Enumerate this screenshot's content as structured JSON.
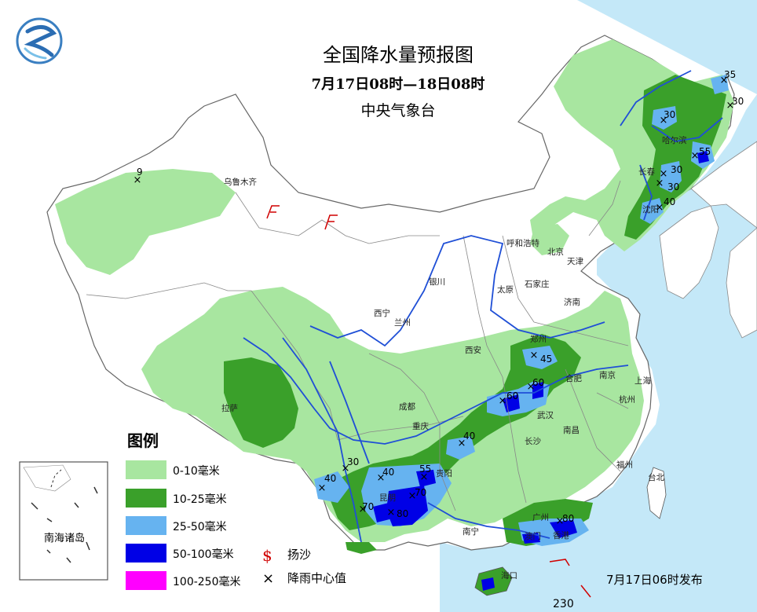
{
  "header": {
    "title": "全国降水量预报图",
    "period": "7月17日08时—18日08时",
    "agency": "中央气象台"
  },
  "footer": {
    "issued": "7月17日06时发布",
    "scale_value": "230"
  },
  "inset": {
    "label": "南海诸岛"
  },
  "legend": {
    "title": "图例",
    "items": [
      {
        "label": "0-10毫米",
        "color": "#a8e6a0"
      },
      {
        "label": "10-25毫米",
        "color": "#3aa02a"
      },
      {
        "label": "25-50毫米",
        "color": "#66b3f0"
      },
      {
        "label": "50-100毫米",
        "color": "#0000e6"
      },
      {
        "label": "100-250毫米",
        "color": "#ff00ff"
      }
    ],
    "symbols": [
      {
        "symbol": "$",
        "label": "扬沙",
        "color": "#d00000"
      },
      {
        "symbol": "×",
        "label": "降雨中心值",
        "color": "#000000"
      }
    ]
  },
  "cities": [
    {
      "name": "乌鲁木齐"
    },
    {
      "name": "哈尔滨"
    },
    {
      "name": "长春"
    },
    {
      "name": "沈阳"
    },
    {
      "name": "呼和浩特"
    },
    {
      "name": "北京"
    },
    {
      "name": "天津"
    },
    {
      "name": "银川"
    },
    {
      "name": "太原"
    },
    {
      "name": "石家庄"
    },
    {
      "name": "济南"
    },
    {
      "name": "西宁"
    },
    {
      "name": "兰州"
    },
    {
      "name": "西安"
    },
    {
      "name": "郑州"
    },
    {
      "name": "南京"
    },
    {
      "name": "合肥"
    },
    {
      "name": "上海"
    },
    {
      "name": "武汉"
    },
    {
      "name": "杭州"
    },
    {
      "name": "拉萨"
    },
    {
      "name": "成都"
    },
    {
      "name": "重庆"
    },
    {
      "name": "长沙"
    },
    {
      "name": "南昌"
    },
    {
      "name": "福州"
    },
    {
      "name": "台北"
    },
    {
      "name": "贵阳"
    },
    {
      "name": "昆明"
    },
    {
      "name": "南宁"
    },
    {
      "name": "广州"
    },
    {
      "name": "香港"
    },
    {
      "name": "澳门"
    },
    {
      "name": "海口"
    }
  ],
  "rain_centers": [
    {
      "value": "9"
    },
    {
      "value": "35"
    },
    {
      "value": "30"
    },
    {
      "value": "30"
    },
    {
      "value": "55"
    },
    {
      "value": "30"
    },
    {
      "value": "30"
    },
    {
      "value": "40"
    },
    {
      "value": "45"
    },
    {
      "value": "60"
    },
    {
      "value": "60"
    },
    {
      "value": "40"
    },
    {
      "value": "30"
    },
    {
      "value": "40"
    },
    {
      "value": "40"
    },
    {
      "value": "55"
    },
    {
      "value": "70"
    },
    {
      "value": "70"
    },
    {
      "value": "80"
    },
    {
      "value": "80"
    }
  ]
}
